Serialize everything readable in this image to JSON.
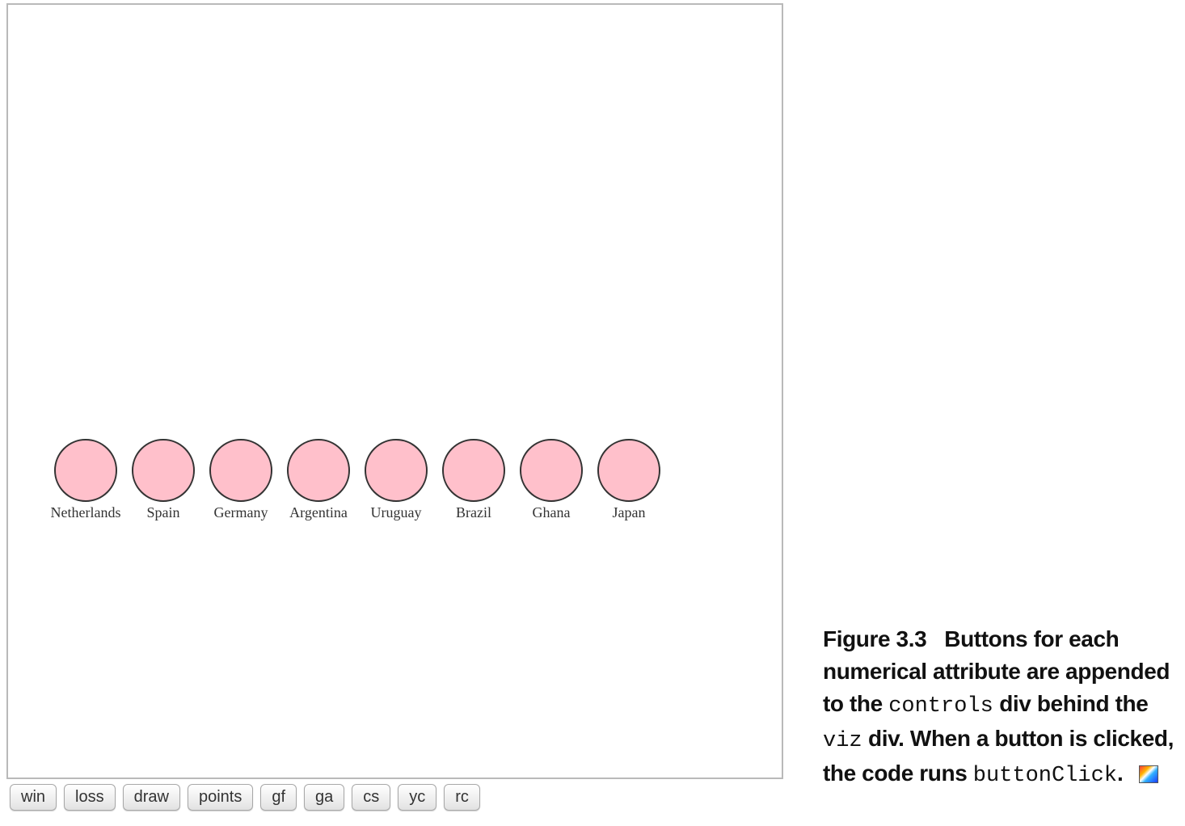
{
  "viz": {
    "teams": [
      "Netherlands",
      "Spain",
      "Germany",
      "Argentina",
      "Uruguay",
      "Brazil",
      "Ghana",
      "Japan"
    ],
    "circle_fill": "#ffc0cb",
    "circle_stroke": "#333333"
  },
  "controls": {
    "buttons": [
      "win",
      "loss",
      "draw",
      "points",
      "gf",
      "ga",
      "cs",
      "yc",
      "rc"
    ]
  },
  "caption": {
    "figure_label": "Figure 3.3",
    "text_1": "Buttons for each numerical attribute are appended to the ",
    "code_1": "controls",
    "text_2": " div behind the ",
    "code_2": "viz",
    "text_3": " div. When a button is clicked, the code runs ",
    "code_3": "buttonClick",
    "text_4": ".",
    "icon": "code-annotation-icon"
  }
}
